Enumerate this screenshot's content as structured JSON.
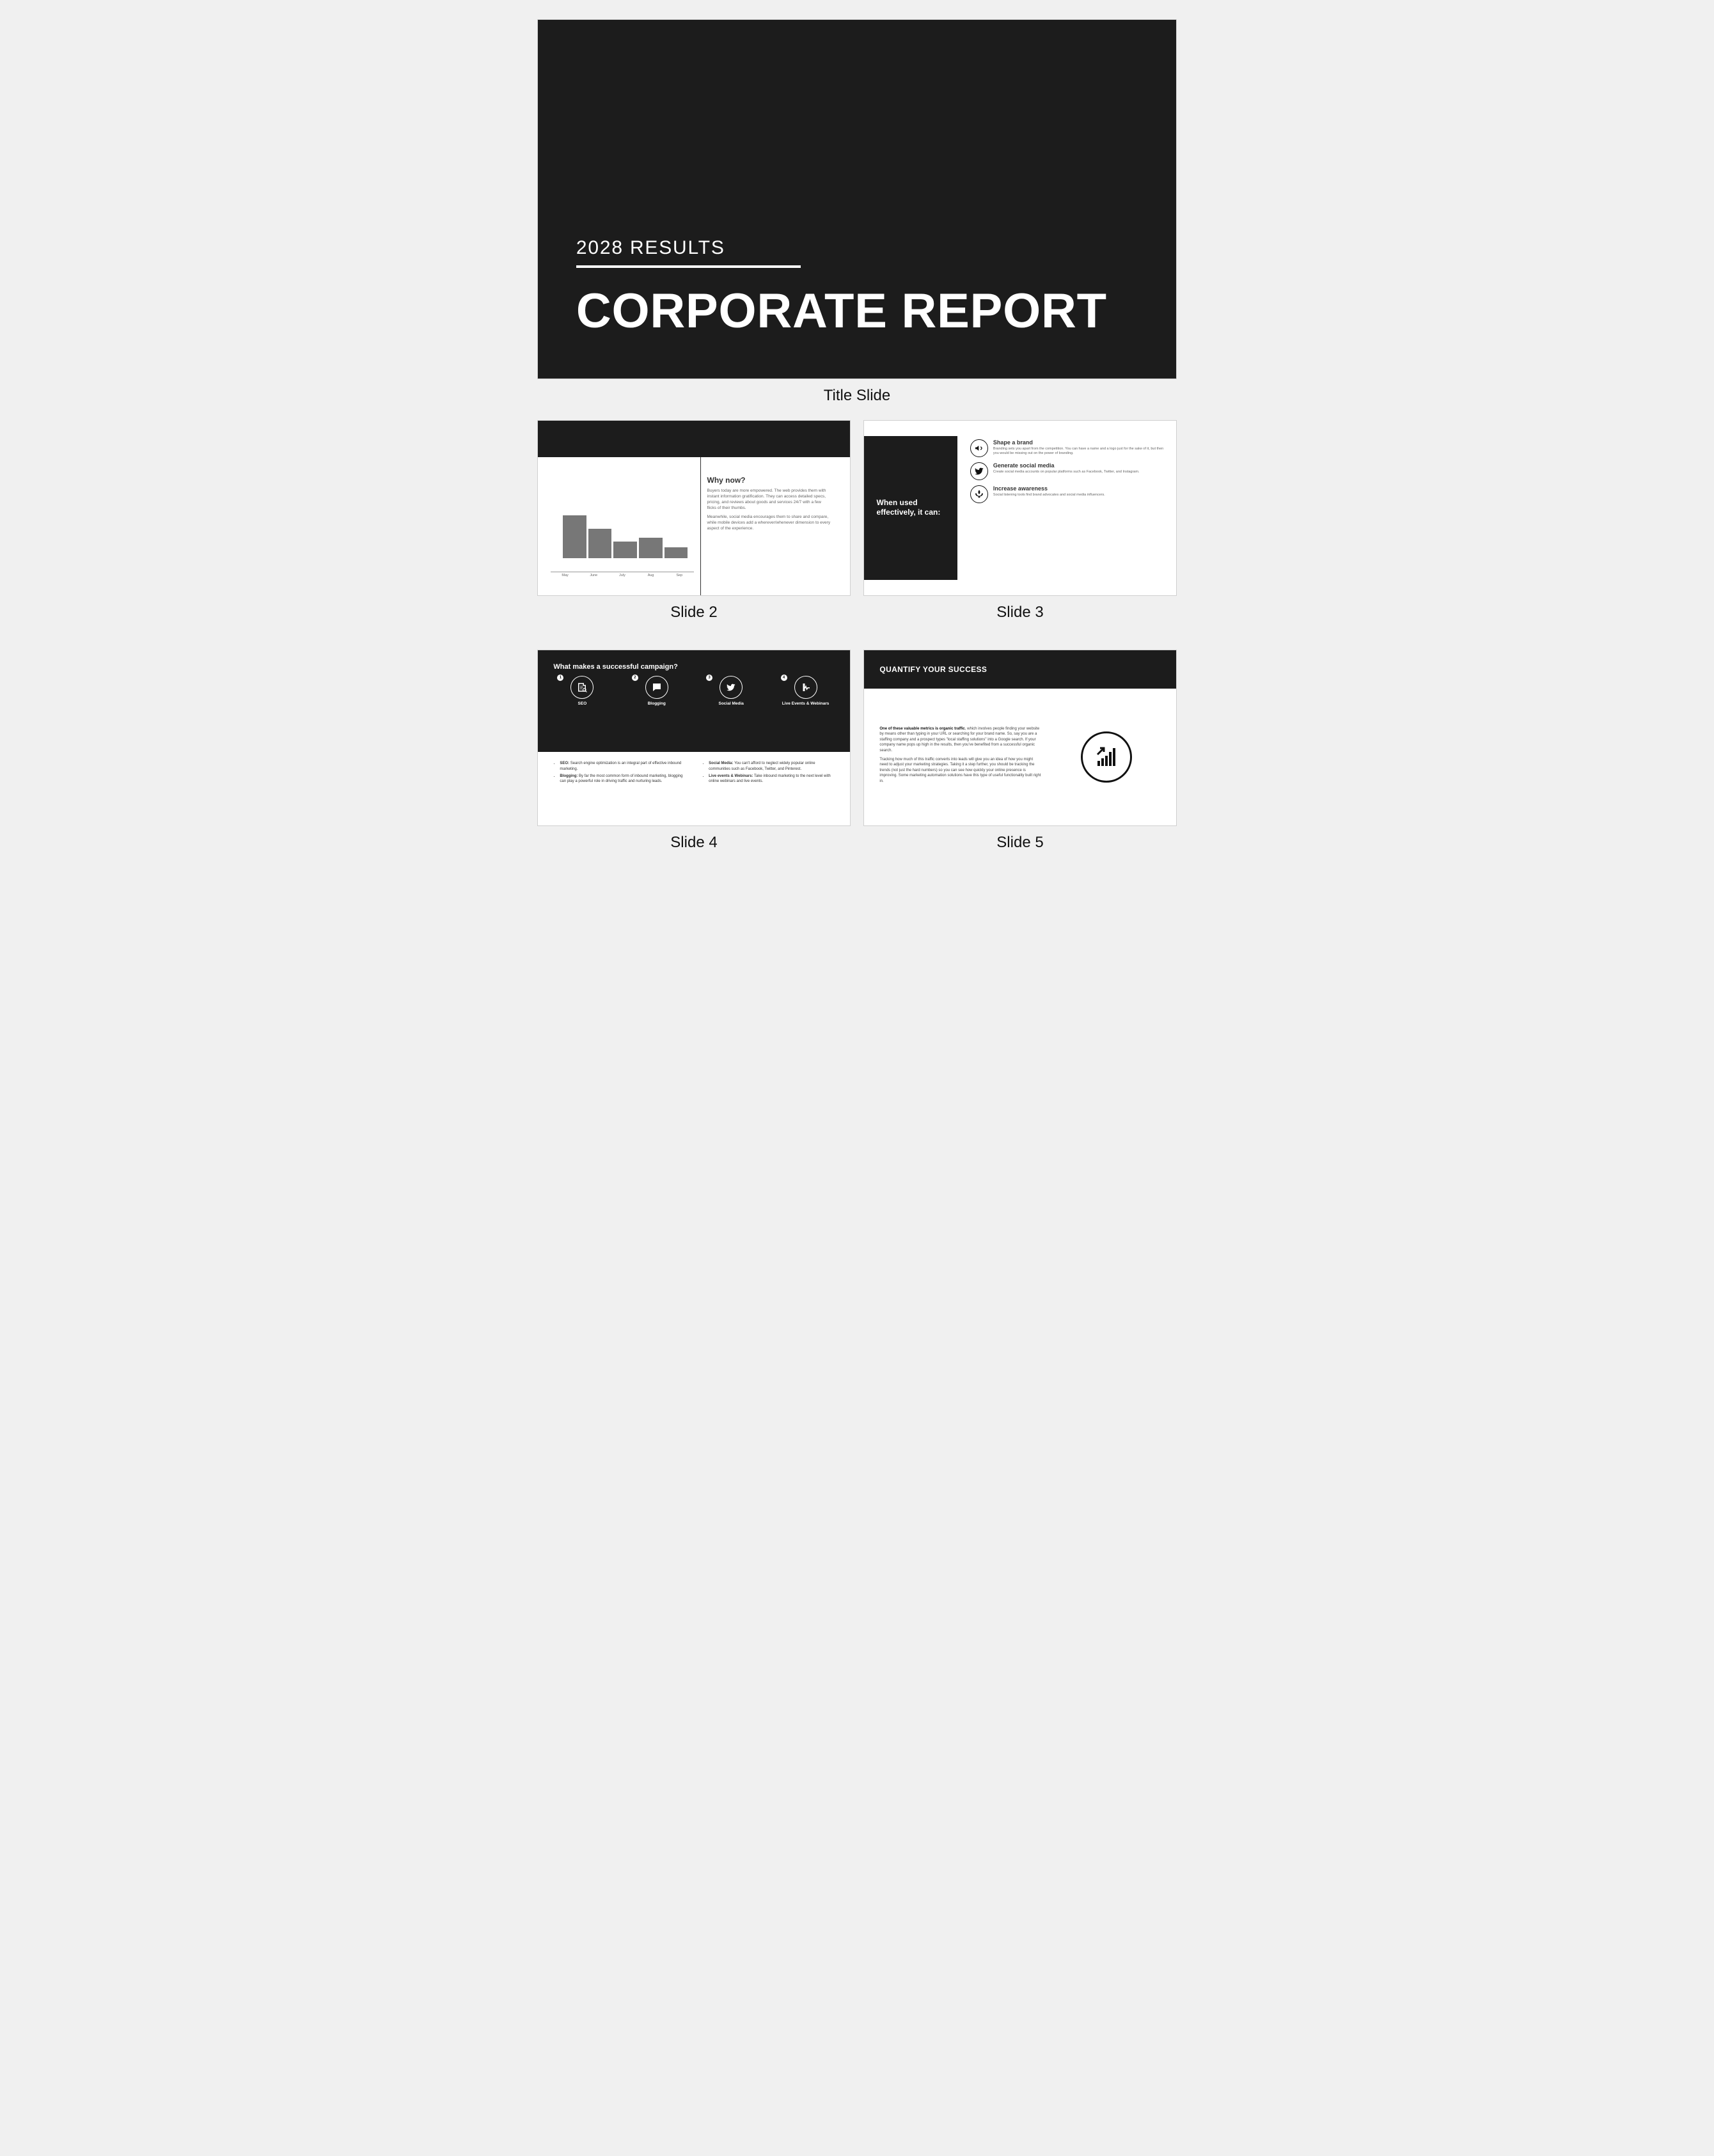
{
  "labels": {
    "title": "Title Slide",
    "s2": "Slide 2",
    "s3": "Slide 3",
    "s4": "Slide 4",
    "s5": "Slide 5"
  },
  "title_slide": {
    "kicker": "2028 RESULTS",
    "main": "CORPORATE REPORT",
    "bg_color": "#1c1c1c",
    "text_color": "#ffffff"
  },
  "slide2": {
    "heading": "Why now?",
    "para1": "Buyers today are more empowered. The web provides them with instant information gratification. They can access detailed specs, pricing, and reviews about goods and services 24/7 with a few flicks of their thumbs.",
    "para2": "Meanwhile, social media encourages them to share and compare, while mobile devices add a wherever/whenever dimension to every aspect of the experience.",
    "chart": {
      "type": "bar",
      "categories": [
        "May",
        "June",
        "July",
        "Aug",
        "Sep"
      ],
      "values": [
        90,
        62,
        35,
        42,
        22
      ],
      "bar_color": "#777777",
      "axis_color": "#999999"
    }
  },
  "slide3": {
    "left_heading": "When used effectively, it can:",
    "items": [
      {
        "icon": "megaphone-icon",
        "title": "Shape a brand",
        "desc": "Branding sets you apart from the competition. You can have a name and a logo just for the sake of it, but then you would be missing out on the power of branding."
      },
      {
        "icon": "twitter-icon",
        "title": "Generate social media",
        "desc": "Create social media accounts on popular platforms such as Facebook, Twitter, and Instagram."
      },
      {
        "icon": "plant-icon",
        "title": "Increase awareness",
        "desc": "Social listening tools find brand advocates and social media influencers."
      }
    ]
  },
  "slide4": {
    "heading": "What makes a successful campaign?",
    "icons": [
      {
        "n": "1",
        "label": "SEO",
        "glyph": "doc-search-icon"
      },
      {
        "n": "2",
        "label": "Blogging",
        "glyph": "chat-icon"
      },
      {
        "n": "3",
        "label": "Social Media",
        "glyph": "twitter-icon"
      },
      {
        "n": "4",
        "label": "Live Events & Webinars",
        "glyph": "pulse-icon"
      }
    ],
    "bullets_left": [
      {
        "b": "SEO:",
        "t": " Search engine optimization is an integral part of effective inbound marketing."
      },
      {
        "b": "Blogging:",
        "t": " By far the most common form of inbound marketing, blogging can play a powerful role in driving traffic and nurturing leads."
      }
    ],
    "bullets_right": [
      {
        "b": "Social Media:",
        "t": " You can't afford to neglect widely popular online communities such as Facebook, Twitter, and Pinterest."
      },
      {
        "b": "Live events & Webinars:",
        "t": " Take inbound marketing to the next level with online webinars and live events."
      }
    ]
  },
  "slide5": {
    "heading": "QUANTIFY YOUR SUCCESS",
    "para1_bold": "One of these valuable metrics is organic traffic",
    "para1": ", which involves people finding your website by means other than typing in your URL or searching for your brand name. So, say you are a staffing company and a prospect types \"local staffing solutions\" into a Google search. If your company name pops up high in the results, then you've benefited from a successful organic search.",
    "para2": "Tracking how much of this traffic converts into leads will give you an idea of how you might need to adjust your marketing strategies. Taking it a step further, you should be tracking the trends (not just the hard numbers) so you can see how quickly your online presence is improving. Some marketing automation solutions have this type of useful functionality built right in.",
    "icon": "growth-chart-icon"
  }
}
